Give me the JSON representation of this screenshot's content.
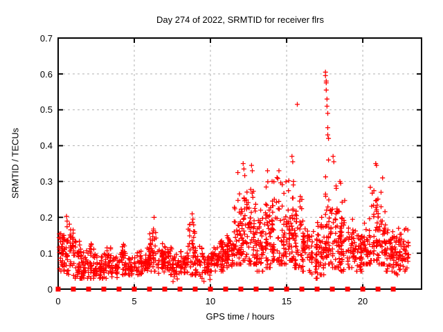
{
  "window": {
    "background": "#ffffff"
  },
  "chart_data": {
    "type": "scatter",
    "title": "Day 274 of 2022, SRMTID for receiver flrs",
    "xlabel": "GPS time / hours",
    "ylabel": "SRMTID / TECUs",
    "xlim": [
      0,
      23.86
    ],
    "ylim": [
      0,
      0.7
    ],
    "xticks": [
      0,
      5,
      10,
      15,
      20
    ],
    "yticks": [
      0,
      0.1,
      0.2,
      0.3,
      0.4,
      0.5,
      0.6,
      0.7
    ],
    "xtick_labels": [
      "0",
      "5",
      "10",
      "15",
      "20"
    ],
    "ytick_labels": [
      "0",
      "0.1",
      "0.2",
      "0.3",
      "0.4",
      "0.5",
      "0.6",
      "0.7"
    ],
    "grid": {
      "visible": true,
      "style": "dashed",
      "color": "#b0b0b0"
    },
    "axis_color": "#000000",
    "legend": {
      "visible": false
    },
    "series": [
      {
        "name": "srmtid",
        "marker": "plus",
        "color": "#ff0000",
        "bin_width": 0.5,
        "bins_format": [
          "hour_start",
          "count",
          "y_min",
          "y_max",
          "y_typical"
        ],
        "bins": [
          [
            0.0,
            40,
            0.05,
            0.17,
            0.1
          ],
          [
            0.5,
            45,
            0.04,
            0.2,
            0.11
          ],
          [
            1.0,
            40,
            0.03,
            0.14,
            0.08
          ],
          [
            1.5,
            35,
            0.03,
            0.12,
            0.065
          ],
          [
            2.0,
            35,
            0.03,
            0.13,
            0.07
          ],
          [
            2.5,
            30,
            0.03,
            0.1,
            0.06
          ],
          [
            3.0,
            35,
            0.03,
            0.12,
            0.07
          ],
          [
            3.5,
            30,
            0.03,
            0.1,
            0.06
          ],
          [
            4.0,
            35,
            0.04,
            0.13,
            0.075
          ],
          [
            4.5,
            30,
            0.03,
            0.09,
            0.06
          ],
          [
            5.0,
            35,
            0.04,
            0.11,
            0.07
          ],
          [
            5.5,
            35,
            0.04,
            0.12,
            0.075
          ],
          [
            6.0,
            40,
            0.05,
            0.19,
            0.1
          ],
          [
            6.5,
            35,
            0.04,
            0.13,
            0.08
          ],
          [
            7.0,
            35,
            0.04,
            0.12,
            0.075
          ],
          [
            7.5,
            30,
            0.02,
            0.1,
            0.06
          ],
          [
            8.0,
            35,
            0.04,
            0.12,
            0.07
          ],
          [
            8.5,
            40,
            0.04,
            0.19,
            0.09
          ],
          [
            9.0,
            35,
            0.03,
            0.12,
            0.07
          ],
          [
            9.5,
            30,
            0.02,
            0.1,
            0.055
          ],
          [
            10.0,
            35,
            0.05,
            0.12,
            0.08
          ],
          [
            10.5,
            40,
            0.05,
            0.16,
            0.09
          ],
          [
            11.0,
            40,
            0.06,
            0.17,
            0.1
          ],
          [
            11.5,
            45,
            0.07,
            0.3,
            0.13
          ],
          [
            12.0,
            50,
            0.08,
            0.33,
            0.15
          ],
          [
            12.5,
            50,
            0.07,
            0.33,
            0.14
          ],
          [
            13.0,
            45,
            0.05,
            0.21,
            0.12
          ],
          [
            13.5,
            45,
            0.06,
            0.3,
            0.13
          ],
          [
            14.0,
            45,
            0.08,
            0.32,
            0.14
          ],
          [
            14.5,
            45,
            0.07,
            0.3,
            0.13
          ],
          [
            15.0,
            45,
            0.08,
            0.34,
            0.14
          ],
          [
            15.5,
            45,
            0.06,
            0.3,
            0.12
          ],
          [
            16.0,
            40,
            0.05,
            0.22,
            0.11
          ],
          [
            16.5,
            40,
            0.03,
            0.18,
            0.09
          ],
          [
            17.0,
            40,
            0.04,
            0.2,
            0.1
          ],
          [
            17.5,
            50,
            0.07,
            0.32,
            0.14
          ],
          [
            18.0,
            45,
            0.06,
            0.32,
            0.12
          ],
          [
            18.5,
            45,
            0.05,
            0.28,
            0.11
          ],
          [
            19.0,
            40,
            0.06,
            0.2,
            0.1
          ],
          [
            19.5,
            40,
            0.05,
            0.18,
            0.09
          ],
          [
            20.0,
            40,
            0.07,
            0.24,
            0.11
          ],
          [
            20.5,
            45,
            0.08,
            0.3,
            0.13
          ],
          [
            21.0,
            40,
            0.07,
            0.26,
            0.12
          ],
          [
            21.5,
            45,
            0.05,
            0.19,
            0.1
          ],
          [
            22.0,
            40,
            0.04,
            0.2,
            0.09
          ],
          [
            22.5,
            35,
            0.05,
            0.19,
            0.1
          ]
        ],
        "notable_points": [
          [
            0.55,
            0.203
          ],
          [
            6.3,
            0.2
          ],
          [
            8.8,
            0.21
          ],
          [
            8.85,
            0.195
          ],
          [
            11.8,
            0.325
          ],
          [
            12.15,
            0.35
          ],
          [
            12.2,
            0.335
          ],
          [
            12.7,
            0.345
          ],
          [
            12.75,
            0.33
          ],
          [
            13.3,
            0.22
          ],
          [
            13.75,
            0.33
          ],
          [
            14.5,
            0.33
          ],
          [
            15.35,
            0.37
          ],
          [
            15.4,
            0.355
          ],
          [
            15.45,
            0.3
          ],
          [
            15.7,
            0.515
          ],
          [
            16.0,
            0.25
          ],
          [
            17.55,
            0.605
          ],
          [
            17.55,
            0.595
          ],
          [
            17.6,
            0.58
          ],
          [
            17.6,
            0.575
          ],
          [
            17.6,
            0.555
          ],
          [
            17.65,
            0.53
          ],
          [
            17.65,
            0.51
          ],
          [
            17.7,
            0.49
          ],
          [
            17.7,
            0.45
          ],
          [
            17.7,
            0.43
          ],
          [
            17.75,
            0.42
          ],
          [
            17.75,
            0.36
          ],
          [
            18.05,
            0.37
          ],
          [
            18.1,
            0.355
          ],
          [
            18.5,
            0.3
          ],
          [
            18.55,
            0.295
          ],
          [
            20.85,
            0.35
          ],
          [
            20.9,
            0.345
          ],
          [
            21.2,
            0.27
          ],
          [
            21.3,
            0.31
          ]
        ]
      },
      {
        "name": "hour-marks-baseline",
        "marker": "filled-square",
        "color": "#ff0000",
        "y": 0,
        "hours": [
          0,
          1,
          2,
          3,
          4,
          5,
          6,
          7,
          8,
          9,
          10,
          11,
          12,
          13,
          14,
          15,
          16,
          17,
          18,
          19,
          20,
          21,
          22
        ]
      }
    ]
  }
}
